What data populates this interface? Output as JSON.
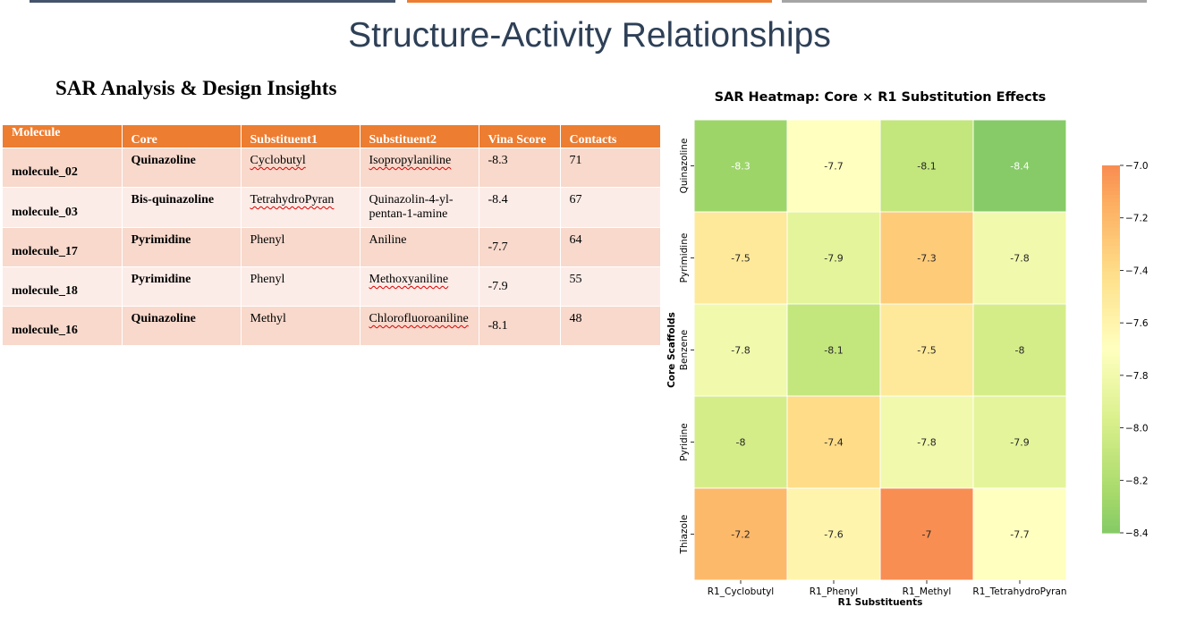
{
  "header": {
    "title": "Structure-Activity Relationships",
    "bar_colors": [
      "#44546a",
      "#ed7d31",
      "#a5a5a5"
    ]
  },
  "left_panel": {
    "subtitle": "SAR Analysis & Design Insights",
    "table": {
      "columns": [
        "Molecule",
        "Core",
        "Substituent1",
        "Substituent2",
        "Vina Score",
        "Contacts"
      ],
      "rows": [
        {
          "molecule": "molecule_02",
          "core": "Quinazoline",
          "sub1": "Cyclobutyl",
          "sub2": "Isopropylaniline",
          "vina": "-8.3",
          "contacts": "71"
        },
        {
          "molecule": "molecule_03",
          "core": "Bis-quinazoline",
          "sub1": "TetrahydroPyran",
          "sub2": "Quinazolin-4-yl-pentan-1-amine",
          "vina": "-8.4",
          "contacts": "67"
        },
        {
          "molecule": "molecule_17",
          "core": "Pyrimidine",
          "sub1": "Phenyl",
          "sub2": "Aniline",
          "vina": "-7.7",
          "contacts": "64"
        },
        {
          "molecule": "molecule_18",
          "core": "Pyrimidine",
          "sub1": "Phenyl",
          "sub2": "Methoxyaniline",
          "vina": "-7.9",
          "contacts": "55"
        },
        {
          "molecule": "molecule_16",
          "core": "Quinazoline",
          "sub1": "Methyl",
          "sub2": "Chlorofluoroaniline",
          "vina": "-8.1",
          "contacts": "48"
        }
      ],
      "header_color": "#ed7d31",
      "row_colors": [
        "#f8d9cc",
        "#fcece7"
      ]
    }
  },
  "chart_data": {
    "type": "heatmap",
    "title": "SAR Heatmap: Core × R1 Substitution Effects",
    "xlabel": "R1 Substituents",
    "ylabel": "Core Scaffolds",
    "x": [
      "R1_Cyclobutyl",
      "R1_Phenyl",
      "R1_Methyl",
      "R1_TetrahydroPyran"
    ],
    "y": [
      "Quinazoline",
      "Pyrimidine",
      "Benzene",
      "Pyridine",
      "Thiazole"
    ],
    "values": [
      [
        -8.3,
        -7.7,
        -8.1,
        -8.4
      ],
      [
        -7.5,
        -7.9,
        -7.3,
        -7.8
      ],
      [
        -7.8,
        -8.1,
        -7.5,
        -8
      ],
      [
        -8,
        -7.4,
        -7.8,
        -7.9
      ],
      [
        -7.2,
        -7.6,
        -7,
        -7.7
      ]
    ],
    "colormap": "RdYlGn_r",
    "vmin": -8.4,
    "vmax": -7.0,
    "colorbar_ticks": [
      "−7.0",
      "−7.2",
      "−7.4",
      "−7.6",
      "−7.8",
      "−8.0",
      "−8.2",
      "−8.4"
    ]
  }
}
